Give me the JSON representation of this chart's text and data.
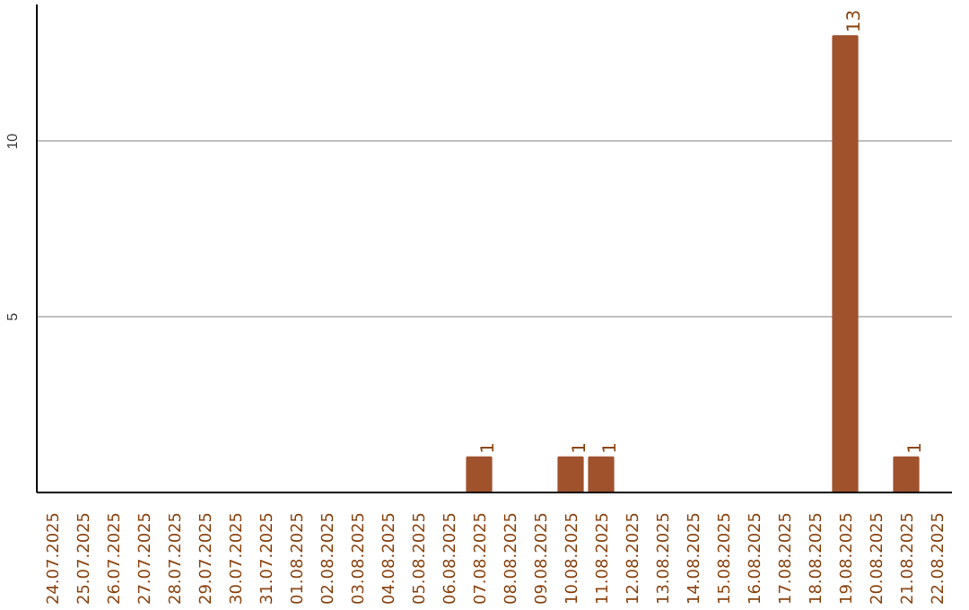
{
  "chart_data": {
    "type": "bar",
    "categories": [
      "24.07.2025",
      "25.07.2025",
      "26.07.2025",
      "27.07.2025",
      "28.07.2025",
      "29.07.2025",
      "30.07.2025",
      "31.07.2025",
      "01.08.2025",
      "02.08.2025",
      "03.08.2025",
      "04.08.2025",
      "05.08.2025",
      "06.08.2025",
      "07.08.2025",
      "08.08.2025",
      "09.08.2025",
      "10.08.2025",
      "11.08.2025",
      "12.08.2025",
      "13.08.2025",
      "14.08.2025",
      "15.08.2025",
      "16.08.2025",
      "17.08.2025",
      "18.08.2025",
      "19.08.2025",
      "20.08.2025",
      "21.08.2025",
      "22.08.2025"
    ],
    "values": [
      0,
      0,
      0,
      0,
      0,
      0,
      0,
      0,
      0,
      0,
      0,
      0,
      0,
      0,
      1,
      0,
      0,
      1,
      1,
      0,
      0,
      0,
      0,
      0,
      0,
      0,
      13,
      0,
      1,
      0
    ],
    "value_labels": [
      null,
      null,
      null,
      null,
      null,
      null,
      null,
      null,
      null,
      null,
      null,
      null,
      null,
      null,
      "1",
      null,
      null,
      "1",
      "1",
      null,
      null,
      null,
      null,
      null,
      null,
      null,
      "13",
      null,
      "1",
      null
    ],
    "color": "#a0522d",
    "ylim": [
      0,
      13.9
    ],
    "yticks": [
      5,
      10
    ],
    "grid": "y"
  }
}
